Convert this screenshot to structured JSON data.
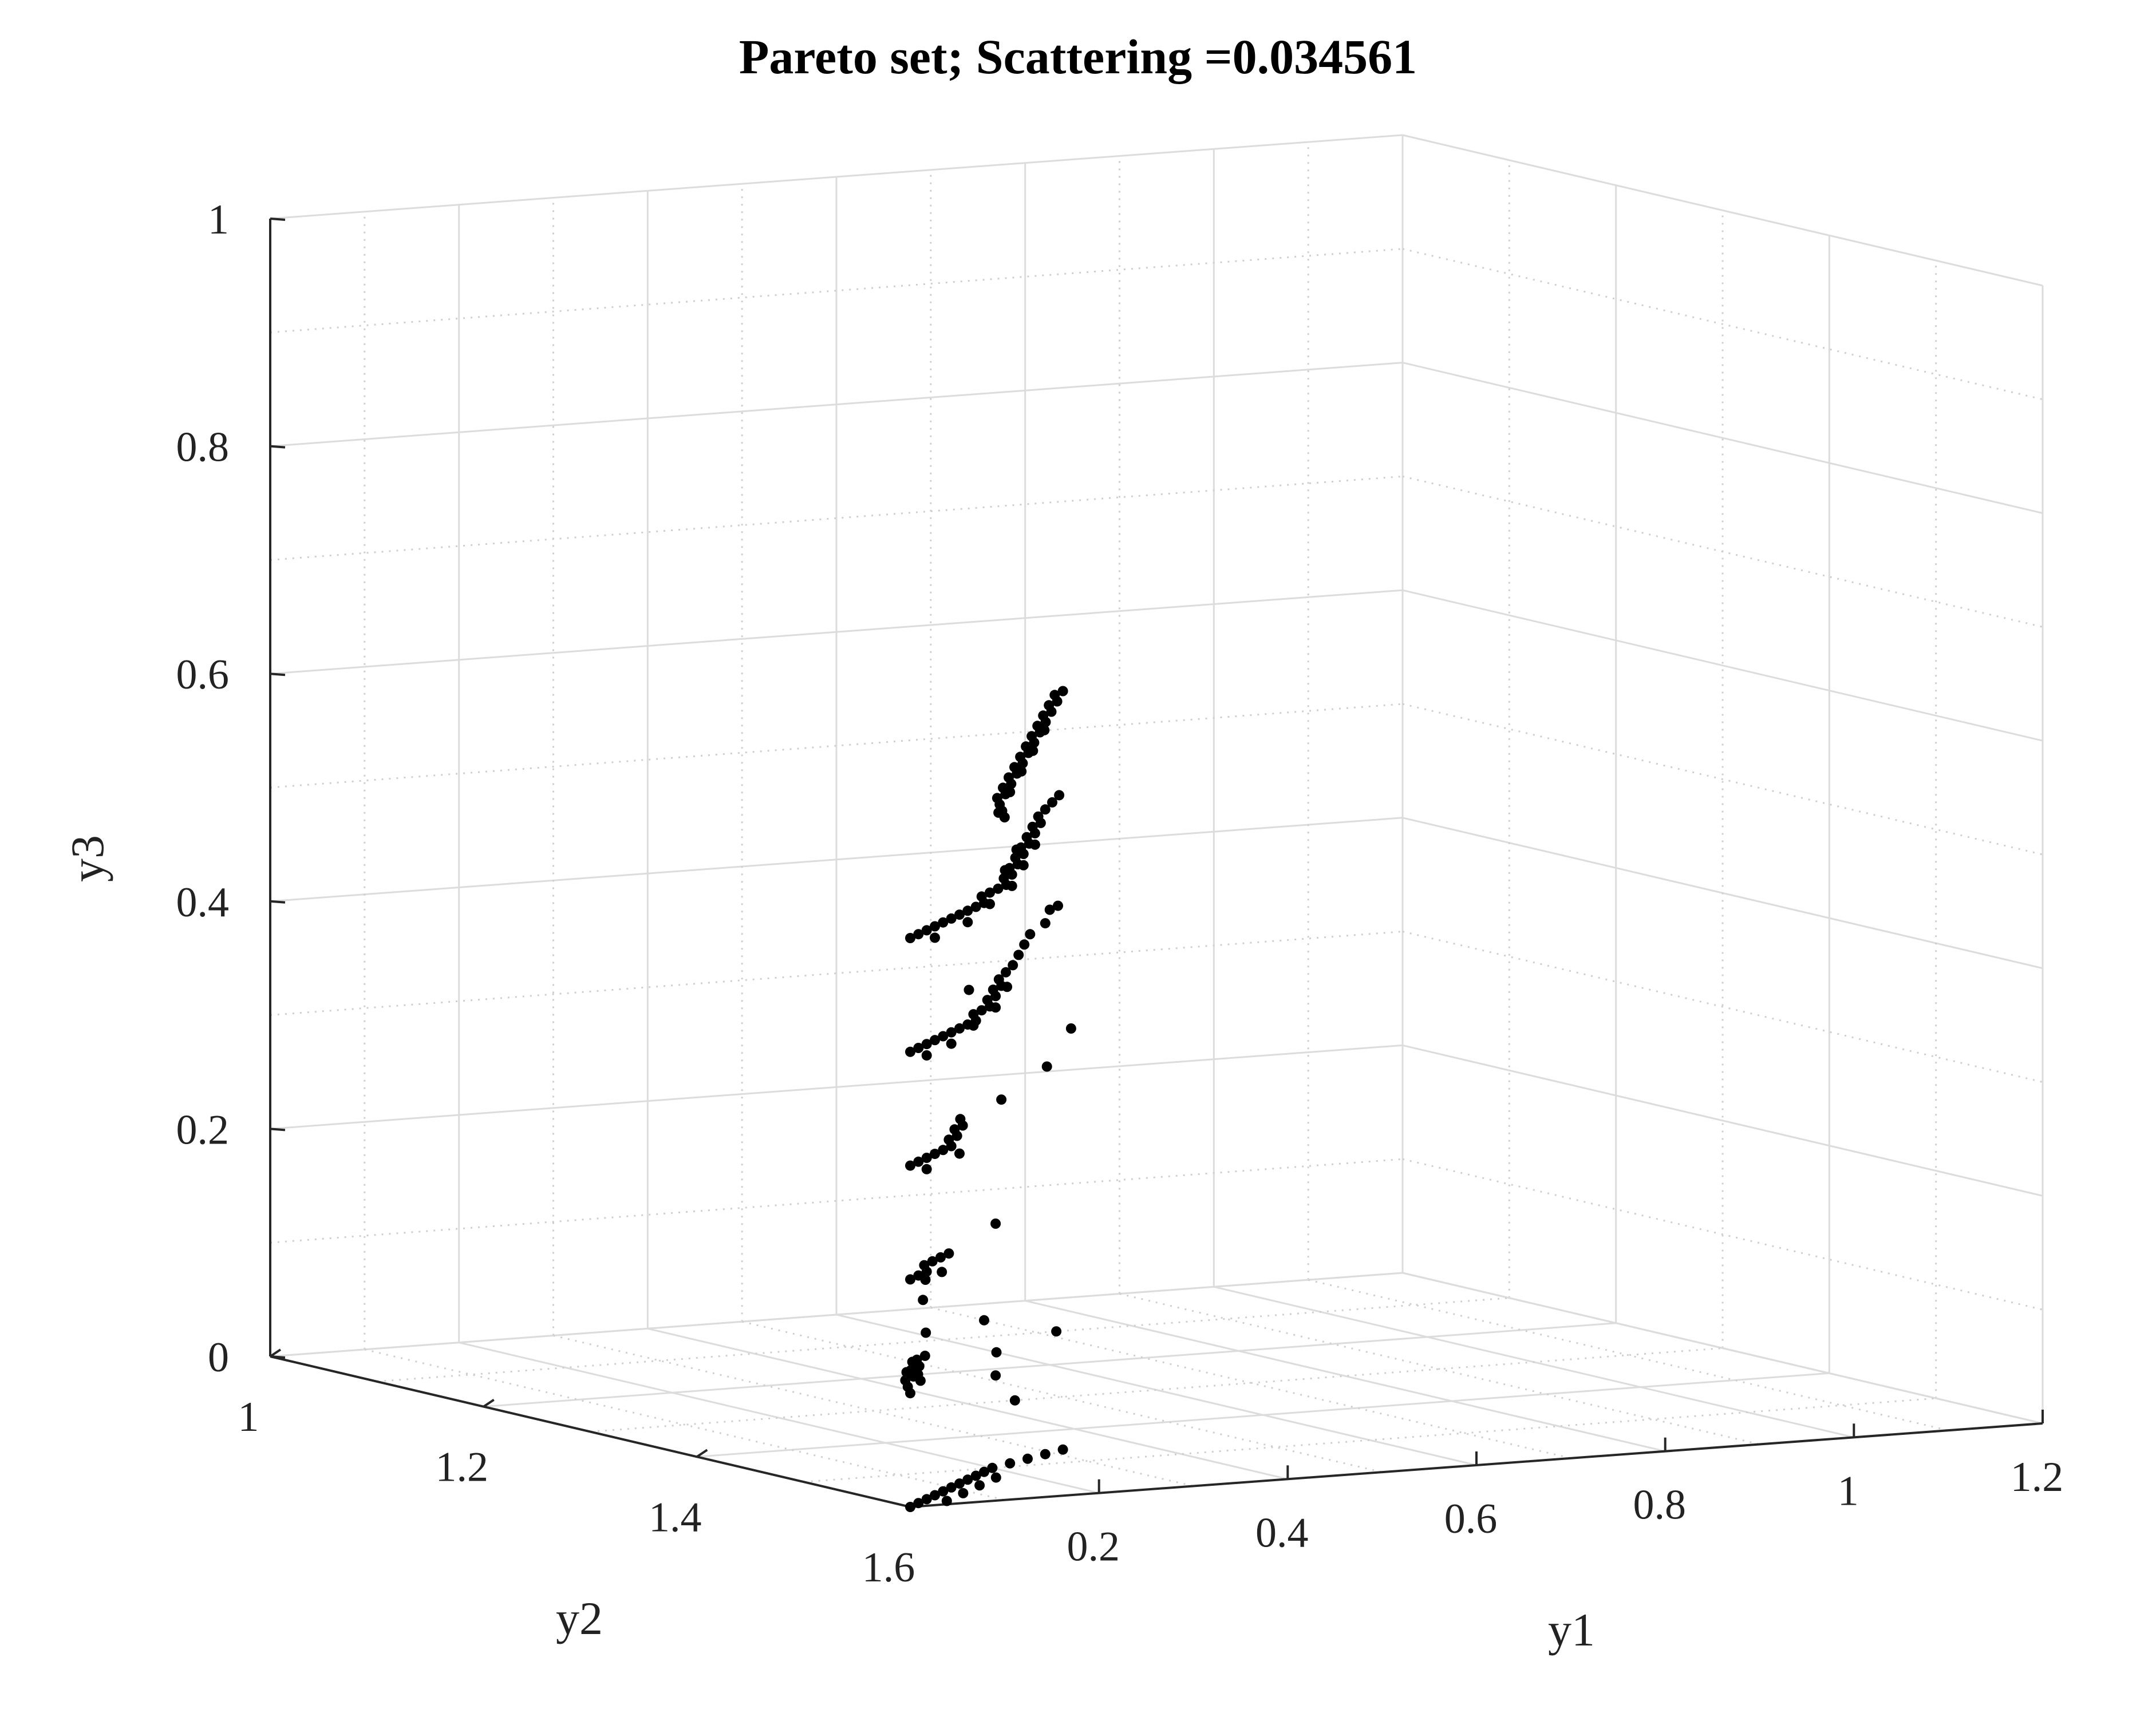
{
  "chart_data": {
    "type": "scatter",
    "projection": "3d",
    "title": "Pareto set; Scattering =0.034561",
    "xlabel": "y1",
    "ylabel": "y2",
    "zlabel": "y3",
    "xlim": [
      0,
      1.2
    ],
    "ylim": [
      1,
      1.6
    ],
    "zlim": [
      0,
      1
    ],
    "x_ticks": [
      "0.2",
      "0.4",
      "0.6",
      "0.8",
      "1",
      "1.2"
    ],
    "y_ticks": [
      "1",
      "1.2",
      "1.4",
      "1.6"
    ],
    "z_ticks": [
      "0",
      "0.2",
      "0.4",
      "0.6",
      "0.8",
      "1"
    ],
    "grid": true,
    "minor_grid": true,
    "marker_color": "#000000",
    "series": [
      {
        "points": [
          [
            0.0,
            1.6,
            0.0
          ],
          [
            0.02,
            1.59,
            0.0
          ],
          [
            0.04,
            1.58,
            0.0
          ],
          [
            0.06,
            1.57,
            0.0
          ],
          [
            0.08,
            1.56,
            0.0
          ],
          [
            0.1,
            1.55,
            0.0
          ],
          [
            0.12,
            1.54,
            0.0
          ],
          [
            0.14,
            1.53,
            0.0
          ],
          [
            0.16,
            1.52,
            0.0
          ],
          [
            0.18,
            1.51,
            0.0
          ],
          [
            0.2,
            1.5,
            0.0
          ],
          [
            0.23,
            1.49,
            0.0
          ],
          [
            0.26,
            1.48,
            0.0
          ],
          [
            0.29,
            1.47,
            0.0
          ],
          [
            0.32,
            1.46,
            0.0
          ],
          [
            0.05,
            1.59,
            0.0
          ],
          [
            0.09,
            1.57,
            0.0
          ],
          [
            0.13,
            1.55,
            0.0
          ],
          [
            0.17,
            1.53,
            0.0
          ],
          [
            0.45,
            1.3,
            0.0
          ],
          [
            0.52,
            1.22,
            0.0
          ],
          [
            0.6,
            1.15,
            0.0
          ],
          [
            0.7,
            1.05,
            0.0
          ],
          [
            0.72,
            1.1,
            0.0
          ],
          [
            0.0,
            1.6,
            0.1
          ],
          [
            0.02,
            1.58,
            0.1
          ],
          [
            0.04,
            1.56,
            0.1
          ],
          [
            0.06,
            1.55,
            0.1
          ],
          [
            0.08,
            1.53,
            0.1
          ],
          [
            0.1,
            1.52,
            0.1
          ],
          [
            0.12,
            1.5,
            0.1
          ],
          [
            0.14,
            1.49,
            0.1
          ],
          [
            0.03,
            1.57,
            0.11
          ],
          [
            0.07,
            1.54,
            0.11
          ],
          [
            0.09,
            1.53,
            0.09
          ],
          [
            0.11,
            1.51,
            0.09
          ],
          [
            0.22,
            1.42,
            0.1
          ],
          [
            0.33,
            1.32,
            0.1
          ],
          [
            0.0,
            1.6,
            0.2
          ],
          [
            0.02,
            1.59,
            0.2
          ],
          [
            0.04,
            1.58,
            0.2
          ],
          [
            0.06,
            1.56,
            0.2
          ],
          [
            0.08,
            1.55,
            0.2
          ],
          [
            0.1,
            1.54,
            0.2
          ],
          [
            0.12,
            1.53,
            0.2
          ],
          [
            0.05,
            1.57,
            0.19
          ],
          [
            0.09,
            1.55,
            0.19
          ],
          [
            0.26,
            1.45,
            0.2
          ],
          [
            0.0,
            1.6,
            0.3
          ],
          [
            0.02,
            1.59,
            0.3
          ],
          [
            0.04,
            1.58,
            0.3
          ],
          [
            0.06,
            1.57,
            0.3
          ],
          [
            0.08,
            1.56,
            0.3
          ],
          [
            0.1,
            1.55,
            0.3
          ],
          [
            0.12,
            1.53,
            0.3
          ],
          [
            0.14,
            1.52,
            0.3
          ],
          [
            0.16,
            1.5,
            0.3
          ],
          [
            0.18,
            1.49,
            0.3
          ],
          [
            0.2,
            1.47,
            0.3
          ],
          [
            0.04,
            1.58,
            0.29
          ],
          [
            0.12,
            1.54,
            0.29
          ],
          [
            0.3,
            1.42,
            0.3
          ],
          [
            0.45,
            1.33,
            0.3
          ],
          [
            0.6,
            1.22,
            0.3
          ],
          [
            0.65,
            1.08,
            0.3
          ],
          [
            0.0,
            1.6,
            0.4
          ],
          [
            0.02,
            1.59,
            0.4
          ],
          [
            0.04,
            1.58,
            0.4
          ],
          [
            0.06,
            1.57,
            0.4
          ],
          [
            0.08,
            1.56,
            0.4
          ],
          [
            0.1,
            1.55,
            0.4
          ],
          [
            0.12,
            1.54,
            0.4
          ],
          [
            0.14,
            1.53,
            0.4
          ],
          [
            0.16,
            1.52,
            0.4
          ],
          [
            0.18,
            1.5,
            0.4
          ],
          [
            0.2,
            1.49,
            0.4
          ],
          [
            0.22,
            1.48,
            0.4
          ],
          [
            0.24,
            1.46,
            0.4
          ],
          [
            0.26,
            1.45,
            0.4
          ],
          [
            0.28,
            1.43,
            0.4
          ],
          [
            0.3,
            1.42,
            0.4
          ],
          [
            0.32,
            1.4,
            0.4
          ],
          [
            0.35,
            1.38,
            0.4
          ],
          [
            0.38,
            1.36,
            0.4
          ],
          [
            0.42,
            1.33,
            0.4
          ],
          [
            0.46,
            1.3,
            0.4
          ],
          [
            0.5,
            1.27,
            0.4
          ],
          [
            0.55,
            1.24,
            0.4
          ],
          [
            0.6,
            1.2,
            0.4
          ],
          [
            0.62,
            1.19,
            0.4
          ],
          [
            0.04,
            1.58,
            0.39
          ],
          [
            0.1,
            1.55,
            0.39
          ],
          [
            0.18,
            1.5,
            0.39
          ],
          [
            0.26,
            1.45,
            0.39
          ],
          [
            0.34,
            1.39,
            0.39
          ],
          [
            0.0,
            1.6,
            0.5
          ],
          [
            0.02,
            1.59,
            0.5
          ],
          [
            0.04,
            1.58,
            0.5
          ],
          [
            0.06,
            1.57,
            0.5
          ],
          [
            0.08,
            1.56,
            0.5
          ],
          [
            0.1,
            1.55,
            0.5
          ],
          [
            0.12,
            1.54,
            0.5
          ],
          [
            0.14,
            1.53,
            0.5
          ],
          [
            0.16,
            1.52,
            0.5
          ],
          [
            0.18,
            1.51,
            0.5
          ],
          [
            0.2,
            1.49,
            0.5
          ],
          [
            0.22,
            1.48,
            0.5
          ],
          [
            0.24,
            1.47,
            0.5
          ],
          [
            0.26,
            1.46,
            0.5
          ],
          [
            0.28,
            1.44,
            0.5
          ],
          [
            0.3,
            1.43,
            0.5
          ],
          [
            0.32,
            1.41,
            0.5
          ],
          [
            0.34,
            1.4,
            0.5
          ],
          [
            0.36,
            1.38,
            0.5
          ],
          [
            0.38,
            1.37,
            0.5
          ],
          [
            0.4,
            1.35,
            0.5
          ],
          [
            0.42,
            1.34,
            0.5
          ],
          [
            0.44,
            1.32,
            0.5
          ],
          [
            0.46,
            1.31,
            0.5
          ],
          [
            0.48,
            1.29,
            0.5
          ],
          [
            0.5,
            1.28,
            0.5
          ],
          [
            0.52,
            1.26,
            0.5
          ],
          [
            0.55,
            1.24,
            0.5
          ],
          [
            0.58,
            1.22,
            0.5
          ],
          [
            0.61,
            1.2,
            0.5
          ],
          [
            0.06,
            1.57,
            0.49
          ],
          [
            0.14,
            1.53,
            0.49
          ],
          [
            0.22,
            1.48,
            0.49
          ],
          [
            0.3,
            1.43,
            0.49
          ],
          [
            0.38,
            1.37,
            0.49
          ],
          [
            0.46,
            1.31,
            0.49
          ],
          [
            0.27,
            1.45,
            0.51
          ],
          [
            0.35,
            1.39,
            0.51
          ],
          [
            0.1,
            1.6,
            0.6
          ],
          [
            0.12,
            1.58,
            0.6
          ],
          [
            0.14,
            1.56,
            0.6
          ],
          [
            0.16,
            1.54,
            0.6
          ],
          [
            0.18,
            1.53,
            0.6
          ],
          [
            0.2,
            1.51,
            0.6
          ],
          [
            0.22,
            1.5,
            0.6
          ],
          [
            0.24,
            1.48,
            0.6
          ],
          [
            0.26,
            1.47,
            0.6
          ],
          [
            0.28,
            1.45,
            0.6
          ],
          [
            0.3,
            1.44,
            0.6
          ],
          [
            0.32,
            1.42,
            0.6
          ],
          [
            0.34,
            1.41,
            0.6
          ],
          [
            0.36,
            1.39,
            0.6
          ],
          [
            0.38,
            1.38,
            0.6
          ],
          [
            0.4,
            1.36,
            0.6
          ],
          [
            0.42,
            1.35,
            0.6
          ],
          [
            0.44,
            1.33,
            0.6
          ],
          [
            0.46,
            1.32,
            0.6
          ],
          [
            0.48,
            1.3,
            0.6
          ],
          [
            0.5,
            1.29,
            0.6
          ],
          [
            0.52,
            1.27,
            0.6
          ],
          [
            0.54,
            1.26,
            0.6
          ],
          [
            0.56,
            1.24,
            0.6
          ],
          [
            0.58,
            1.23,
            0.6
          ],
          [
            0.15,
            1.55,
            0.59
          ],
          [
            0.23,
            1.49,
            0.59
          ],
          [
            0.31,
            1.43,
            0.59
          ],
          [
            0.39,
            1.37,
            0.59
          ],
          [
            0.47,
            1.31,
            0.59
          ]
        ]
      }
    ]
  }
}
